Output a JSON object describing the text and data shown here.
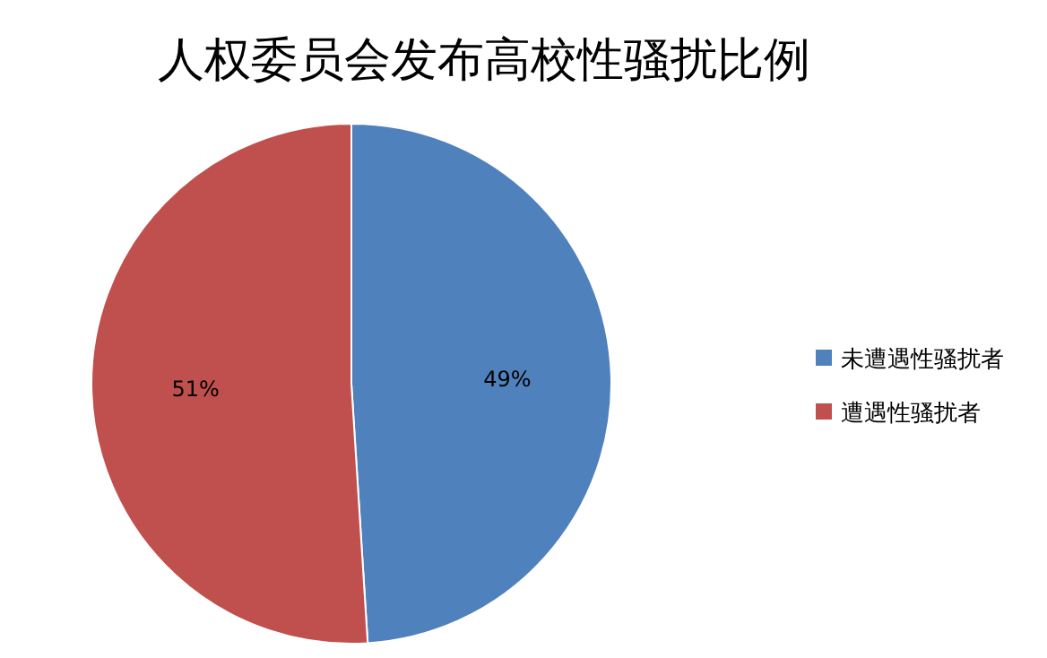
{
  "chart_data": {
    "type": "pie",
    "title": "人权委员会发布高校性骚扰比例",
    "categories": [
      "未遭遇性骚扰者",
      "遭遇性骚扰者"
    ],
    "values": [
      49,
      51
    ],
    "colors": [
      "#4f81bd",
      "#c0504d"
    ],
    "value_labels": [
      "49%",
      "51%"
    ],
    "legend": "right"
  }
}
